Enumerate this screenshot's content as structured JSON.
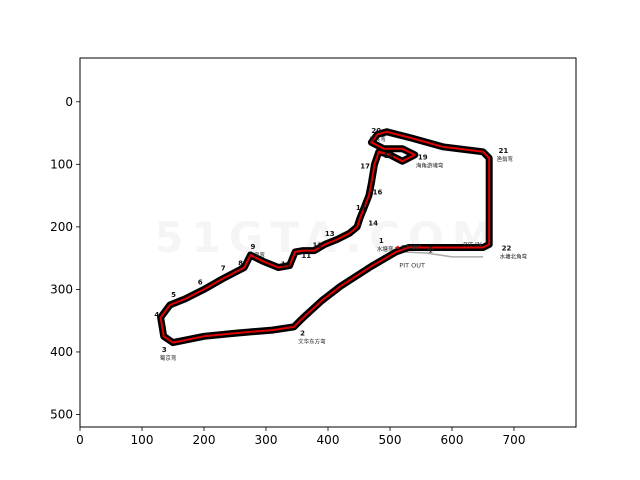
{
  "chart_data": {
    "type": "image",
    "xlim": [
      0,
      800
    ],
    "ylim": [
      520,
      -70
    ],
    "x_ticks": [
      0,
      100,
      200,
      300,
      400,
      500,
      600,
      700
    ],
    "y_ticks": [
      0,
      100,
      200,
      300,
      400,
      500
    ],
    "track_color": "#000000",
    "racing_line_color": "#e00000",
    "track_path": [
      [
        495,
        48
      ],
      [
        535,
        58
      ],
      [
        585,
        72
      ],
      [
        650,
        80
      ],
      [
        660,
        90
      ],
      [
        660,
        228
      ],
      [
        650,
        233
      ],
      [
        530,
        233
      ],
      [
        510,
        240
      ],
      [
        470,
        263
      ],
      [
        420,
        295
      ],
      [
        390,
        318
      ],
      [
        360,
        345
      ],
      [
        345,
        360
      ],
      [
        310,
        365
      ],
      [
        250,
        370
      ],
      [
        200,
        375
      ],
      [
        150,
        385
      ],
      [
        135,
        375
      ],
      [
        130,
        345
      ],
      [
        145,
        325
      ],
      [
        170,
        315
      ],
      [
        200,
        300
      ],
      [
        230,
        283
      ],
      [
        265,
        265
      ],
      [
        275,
        245
      ],
      [
        295,
        255
      ],
      [
        320,
        265
      ],
      [
        338,
        262
      ],
      [
        347,
        240
      ],
      [
        360,
        238
      ],
      [
        378,
        238
      ],
      [
        395,
        228
      ],
      [
        415,
        220
      ],
      [
        435,
        210
      ],
      [
        447,
        200
      ],
      [
        452,
        185
      ],
      [
        458,
        170
      ],
      [
        466,
        150
      ],
      [
        470,
        130
      ],
      [
        475,
        100
      ],
      [
        482,
        80
      ],
      [
        500,
        85
      ],
      [
        520,
        95
      ],
      [
        540,
        85
      ],
      [
        520,
        75
      ],
      [
        490,
        75
      ],
      [
        470,
        65
      ],
      [
        480,
        52
      ],
      [
        495,
        48
      ]
    ],
    "turns": [
      {
        "num": "1",
        "name": "水塘弯",
        "x": 482,
        "y": 226
      },
      {
        "num": "2",
        "name": "文华东方弯",
        "x": 355,
        "y": 374
      },
      {
        "num": "3",
        "name": "蜀京弯",
        "x": 132,
        "y": 400
      },
      {
        "num": "4",
        "name": "",
        "x": 120,
        "y": 344
      },
      {
        "num": "5",
        "name": "",
        "x": 147,
        "y": 312
      },
      {
        "num": "6",
        "name": "",
        "x": 190,
        "y": 292
      },
      {
        "num": "7",
        "name": "",
        "x": 227,
        "y": 270
      },
      {
        "num": "8",
        "name": "",
        "x": 255,
        "y": 262
      },
      {
        "num": "9",
        "name": "产房弯",
        "x": 275,
        "y": 235
      },
      {
        "num": "10",
        "name": "",
        "x": 324,
        "y": 263
      },
      {
        "num": "11",
        "name": "",
        "x": 357,
        "y": 250
      },
      {
        "num": "12",
        "name": "",
        "x": 375,
        "y": 233
      },
      {
        "num": "13",
        "name": "",
        "x": 395,
        "y": 215
      },
      {
        "num": "14",
        "name": "",
        "x": 465,
        "y": 198
      },
      {
        "num": "15",
        "name": "",
        "x": 445,
        "y": 173
      },
      {
        "num": "16",
        "name": "",
        "x": 472,
        "y": 148
      },
      {
        "num": "17",
        "name": "",
        "x": 452,
        "y": 107
      },
      {
        "num": "18",
        "name": "",
        "x": 490,
        "y": 90
      },
      {
        "num": "19",
        "name": "海角游魂弯",
        "x": 545,
        "y": 92
      },
      {
        "num": "20",
        "name": "发夹弯",
        "x": 470,
        "y": 50
      },
      {
        "num": "21",
        "name": "渔翁弯",
        "x": 675,
        "y": 82
      },
      {
        "num": "22",
        "name": "水塘北角弯",
        "x": 680,
        "y": 238
      }
    ],
    "labels": {
      "start": "START",
      "pit_in": "PIT IN",
      "pit_out": "PIT OUT",
      "watermark": "51GTA.COM"
    }
  }
}
